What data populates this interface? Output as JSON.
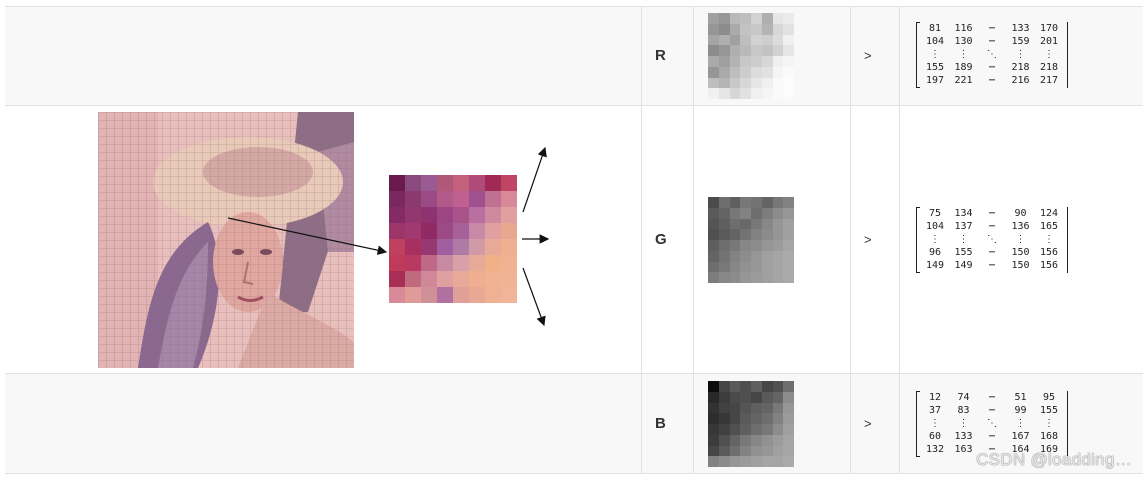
{
  "channels": [
    {
      "label": "R",
      "arrow": ">",
      "matrix": [
        [
          "81",
          "116",
          "⋯",
          "133",
          "170"
        ],
        [
          "104",
          "130",
          "⋯",
          "159",
          "201"
        ],
        [
          "⋮",
          "⋮",
          "⋱",
          "⋮",
          "⋮"
        ],
        [
          "155",
          "189",
          "⋯",
          "218",
          "218"
        ],
        [
          "197",
          "221",
          "⋯",
          "216",
          "217"
        ]
      ],
      "pixels": [
        160,
        150,
        185,
        190,
        210,
        175,
        230,
        235,
        150,
        140,
        170,
        195,
        200,
        180,
        215,
        225,
        165,
        175,
        160,
        190,
        210,
        205,
        220,
        240,
        140,
        150,
        175,
        185,
        200,
        195,
        210,
        230,
        170,
        160,
        180,
        200,
        205,
        215,
        240,
        245,
        150,
        170,
        190,
        205,
        220,
        225,
        245,
        250,
        190,
        180,
        200,
        215,
        230,
        240,
        250,
        252,
        240,
        230,
        215,
        225,
        240,
        245,
        250,
        252
      ]
    },
    {
      "label": "G",
      "arrow": ">",
      "matrix": [
        [
          "75",
          "134",
          "⋯",
          "90",
          "124"
        ],
        [
          "104",
          "137",
          "⋯",
          "136",
          "165"
        ],
        [
          "⋮",
          "⋮",
          "⋱",
          "⋮",
          "⋮"
        ],
        [
          "96",
          "155",
          "⋯",
          "150",
          "156"
        ],
        [
          "149",
          "149",
          "⋯",
          "150",
          "156"
        ]
      ],
      "pixels": [
        75,
        110,
        95,
        120,
        115,
        100,
        120,
        130,
        90,
        100,
        120,
        130,
        110,
        125,
        140,
        150,
        85,
        95,
        110,
        105,
        120,
        135,
        150,
        160,
        80,
        90,
        100,
        115,
        130,
        140,
        150,
        160,
        95,
        110,
        120,
        135,
        140,
        150,
        155,
        165,
        100,
        115,
        130,
        140,
        150,
        160,
        165,
        170,
        110,
        120,
        135,
        145,
        150,
        160,
        165,
        170,
        125,
        135,
        140,
        150,
        155,
        160,
        165,
        170
      ]
    },
    {
      "label": "B",
      "arrow": ">",
      "matrix": [
        [
          "12",
          "74",
          "⋯",
          "51",
          "95"
        ],
        [
          "37",
          "83",
          "⋯",
          "99",
          "155"
        ],
        [
          "⋮",
          "⋮",
          "⋱",
          "⋮",
          "⋮"
        ],
        [
          "60",
          "133",
          "⋯",
          "167",
          "168"
        ],
        [
          "132",
          "163",
          "⋯",
          "164",
          "169"
        ]
      ],
      "pixels": [
        12,
        70,
        90,
        80,
        95,
        70,
        80,
        110,
        40,
        60,
        75,
        80,
        70,
        90,
        100,
        140,
        50,
        65,
        70,
        85,
        95,
        100,
        120,
        150,
        45,
        55,
        70,
        90,
        100,
        110,
        130,
        155,
        55,
        65,
        80,
        95,
        110,
        120,
        140,
        160,
        60,
        80,
        100,
        120,
        135,
        145,
        155,
        165,
        70,
        90,
        110,
        130,
        145,
        150,
        160,
        165,
        130,
        140,
        150,
        155,
        160,
        165,
        165,
        170
      ]
    }
  ],
  "patch_colors": [
    "#6b1a4e",
    "#8a4a7e",
    "#9a5a94",
    "#b05878",
    "#c4607e",
    "#b04a76",
    "#a02a55",
    "#c04565",
    "#7a2860",
    "#8c3a6e",
    "#9a4a84",
    "#b35a8a",
    "#c06090",
    "#a0508c",
    "#c07090",
    "#d88898",
    "#842a64",
    "#92386e",
    "#8e3270",
    "#9c4484",
    "#a8548a",
    "#b870a0",
    "#d08aa0",
    "#e0a0a0",
    "#9c3668",
    "#a23870",
    "#902a64",
    "#9c4a86",
    "#a8609a",
    "#c888a8",
    "#e0a0a0",
    "#e8a890",
    "#c04060",
    "#a83060",
    "#983870",
    "#a060a0",
    "#b07aa6",
    "#d09aa6",
    "#e8aa98",
    "#eeb090",
    "#c03a5a",
    "#b83a62",
    "#c06888",
    "#c88aa0",
    "#d8a0a8",
    "#e8aa98",
    "#f0b088",
    "#f0b290",
    "#a82e55",
    "#c06a80",
    "#d08898",
    "#e0a0a0",
    "#e8aa98",
    "#f0ae90",
    "#f0b290",
    "#f0b494",
    "#d88a98",
    "#e09a98",
    "#d09098",
    "#b070a0",
    "#e0a098",
    "#e8a894",
    "#f0b094",
    "#f0b498"
  ],
  "watermark": "CSDN @loadding…"
}
